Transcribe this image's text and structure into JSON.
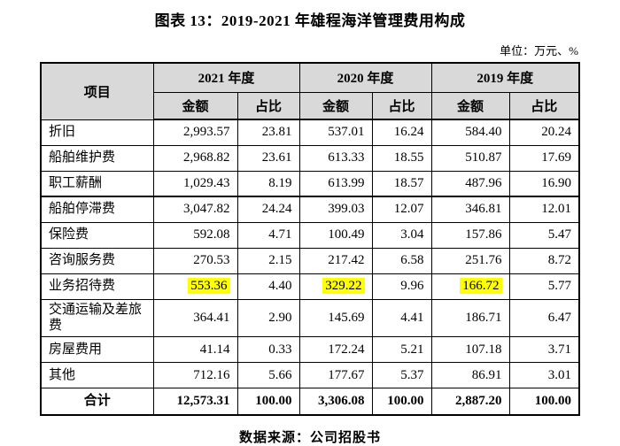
{
  "title": "图表 13：2019-2021 年雄程海洋管理费用构成",
  "unit_label": "单位：万元、%",
  "source": "数据来源：公司招股书",
  "colors": {
    "header_bg": "#d9d9d9",
    "highlight": "#ffff00",
    "border": "#000000"
  },
  "table": {
    "item_header": "项目",
    "year_headers": [
      "2021 年度",
      "2020 年度",
      "2019 年度"
    ],
    "sub_headers": [
      "金额",
      "占比"
    ],
    "rows": [
      {
        "label": "折旧",
        "values": [
          "2,993.57",
          "23.81",
          "537.01",
          "16.24",
          "584.40",
          "20.24"
        ],
        "highlight_cols": [],
        "thick_bottom": false
      },
      {
        "label": "船舶维护费",
        "values": [
          "2,968.82",
          "23.61",
          "613.33",
          "18.55",
          "510.87",
          "17.69"
        ],
        "highlight_cols": [],
        "thick_bottom": false
      },
      {
        "label": "职工薪酬",
        "values": [
          "1,029.43",
          "8.19",
          "613.99",
          "18.57",
          "487.96",
          "16.90"
        ],
        "highlight_cols": [],
        "thick_bottom": true
      },
      {
        "label": "船舶停滞费",
        "values": [
          "3,047.82",
          "24.24",
          "399.03",
          "12.07",
          "346.81",
          "12.01"
        ],
        "highlight_cols": [],
        "thick_bottom": false
      },
      {
        "label": "保险费",
        "values": [
          "592.08",
          "4.71",
          "100.49",
          "3.04",
          "157.86",
          "5.47"
        ],
        "highlight_cols": [],
        "thick_bottom": false
      },
      {
        "label": "咨询服务费",
        "values": [
          "270.53",
          "2.15",
          "217.42",
          "6.58",
          "251.76",
          "8.72"
        ],
        "highlight_cols": [],
        "thick_bottom": false
      },
      {
        "label": "业务招待费",
        "values": [
          "553.36",
          "4.40",
          "329.22",
          "9.96",
          "166.72",
          "5.77"
        ],
        "highlight_cols": [
          0,
          2,
          4
        ],
        "thick_bottom": false
      },
      {
        "label": "交通运输及差旅费",
        "values": [
          "364.41",
          "2.90",
          "145.69",
          "4.41",
          "186.71",
          "6.47"
        ],
        "highlight_cols": [],
        "thick_bottom": false
      },
      {
        "label": "房屋费用",
        "values": [
          "41.14",
          "0.33",
          "172.24",
          "5.21",
          "107.18",
          "3.71"
        ],
        "highlight_cols": [],
        "thick_bottom": false
      },
      {
        "label": "其他",
        "values": [
          "712.16",
          "5.66",
          "177.67",
          "5.37",
          "86.91",
          "3.01"
        ],
        "highlight_cols": [],
        "thick_bottom": false
      }
    ],
    "total": {
      "label": "合计",
      "values": [
        "12,573.31",
        "100.00",
        "3,306.08",
        "100.00",
        "2,887.20",
        "100.00"
      ]
    }
  }
}
